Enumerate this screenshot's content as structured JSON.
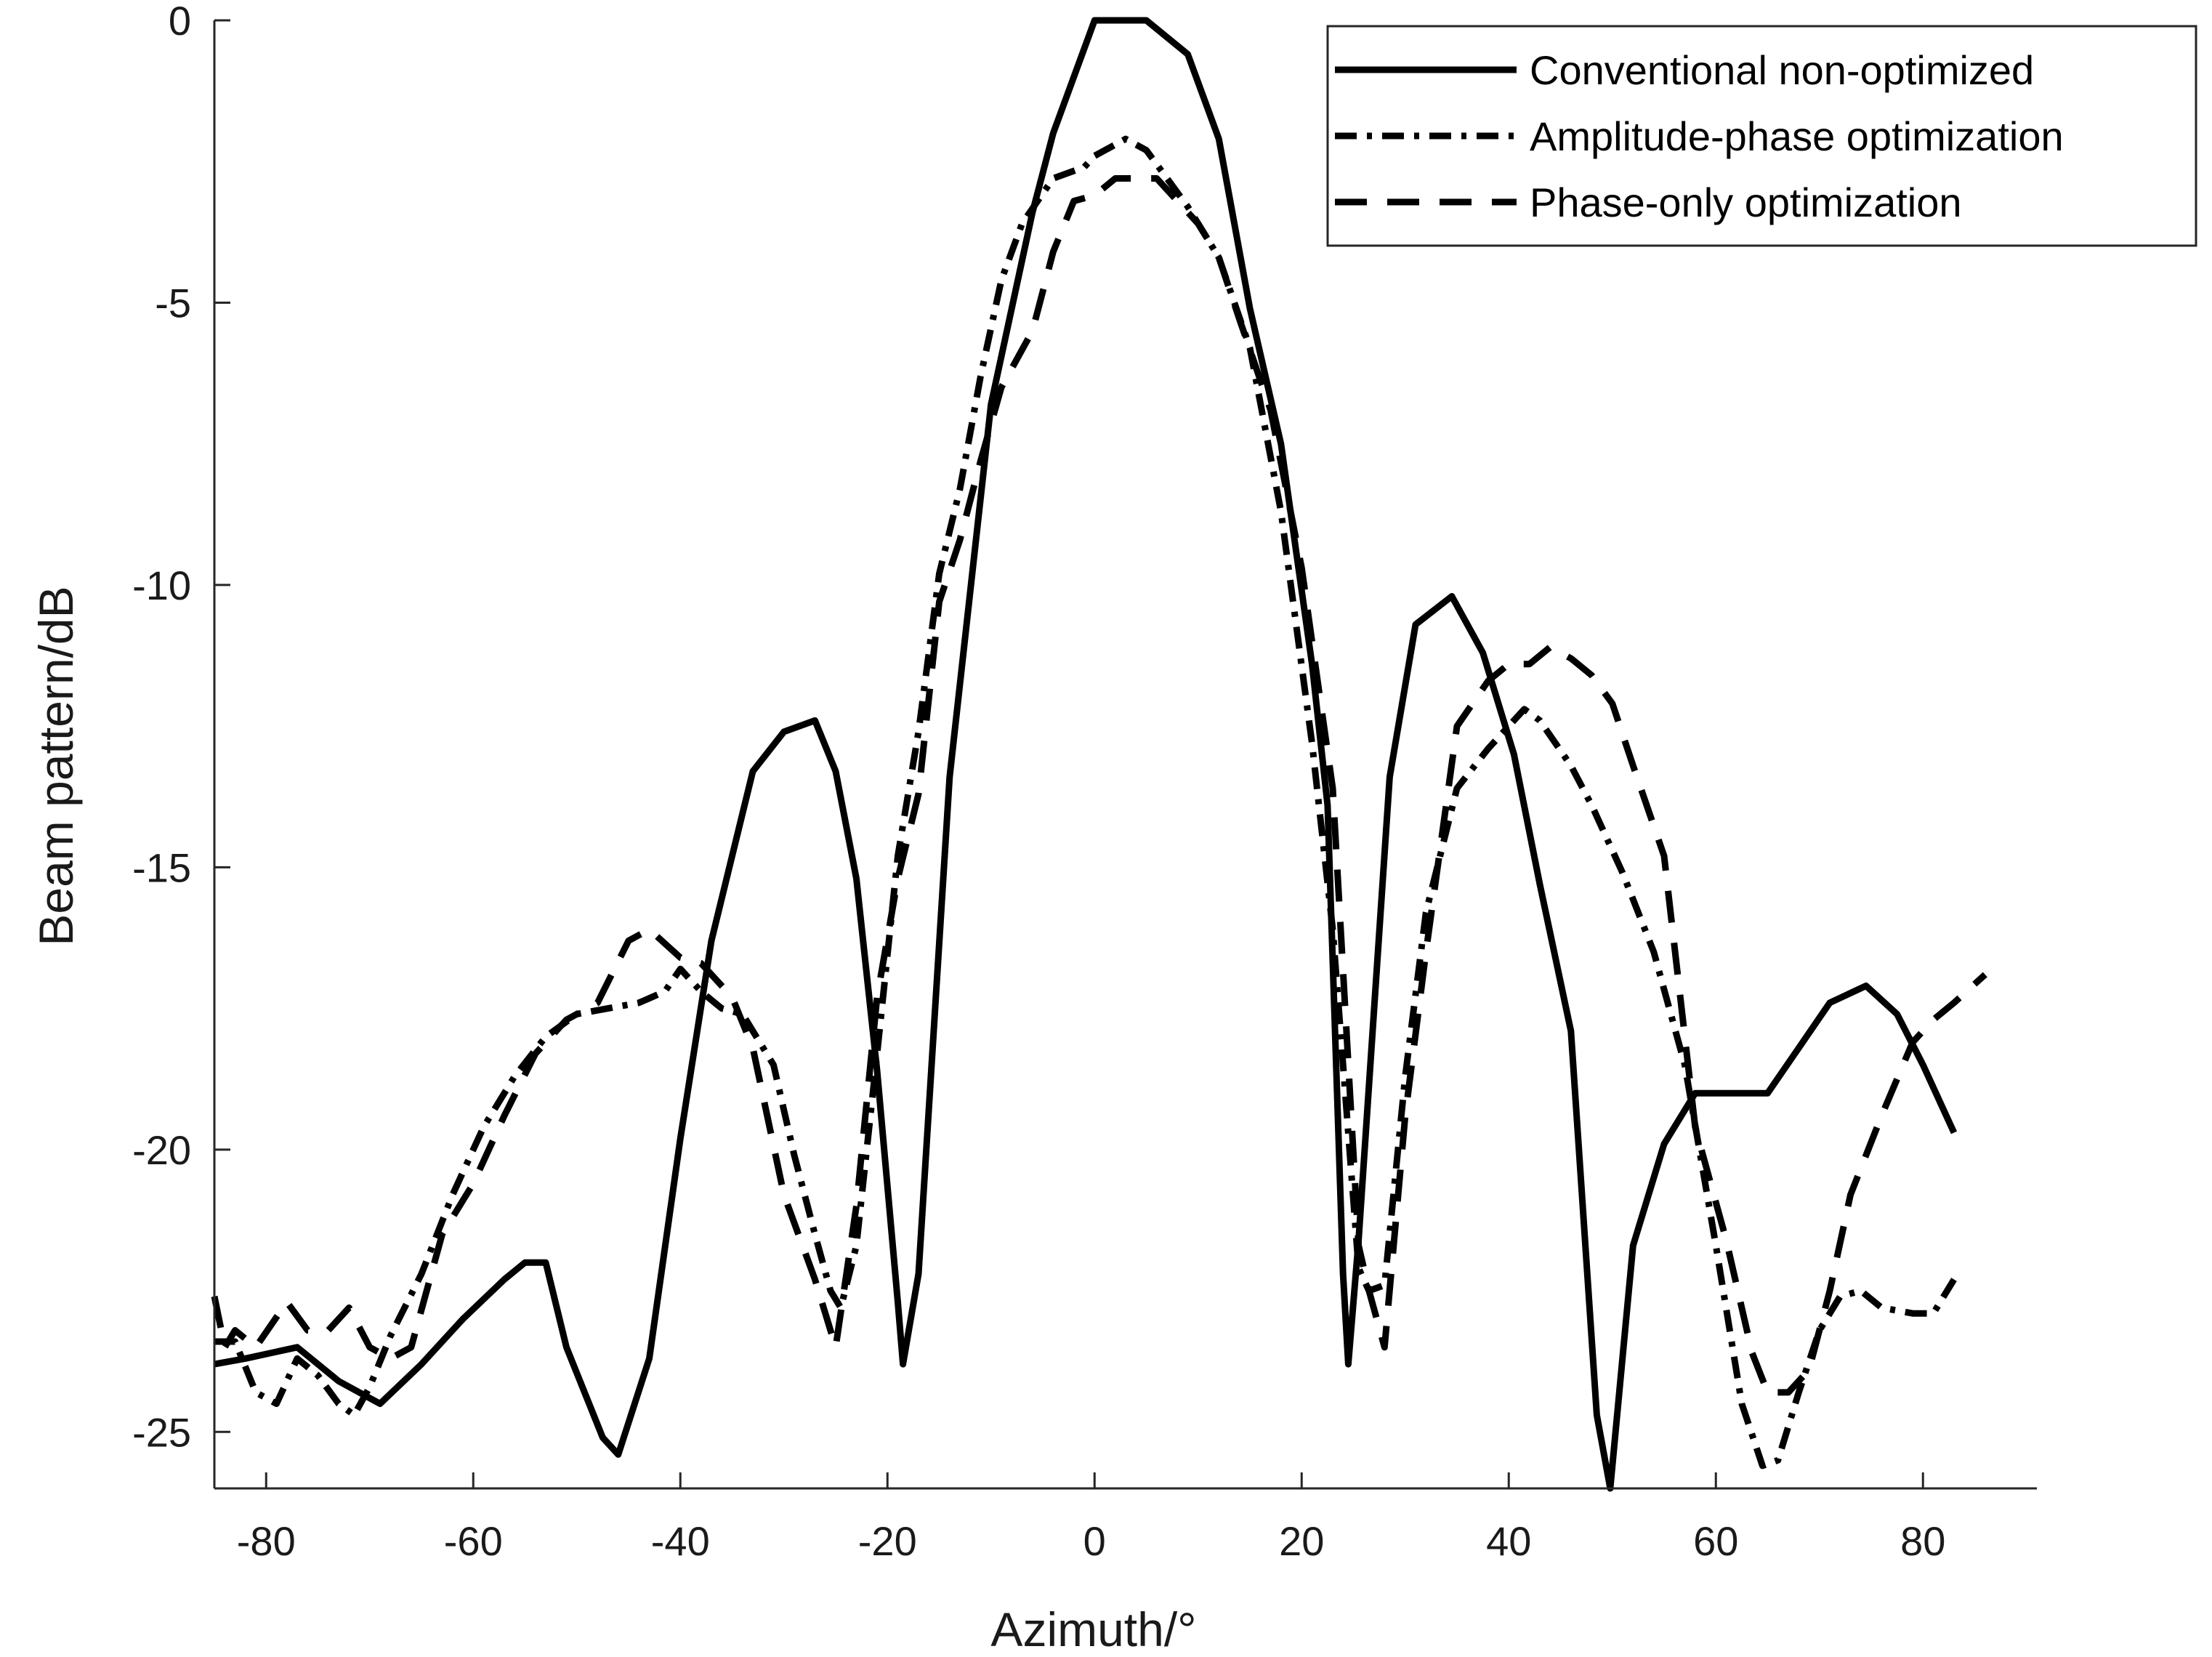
{
  "chart_data": {
    "type": "line",
    "title": "",
    "xlabel": "Azimuth/°",
    "ylabel": "Beam pattern/dB",
    "xlim": [
      -85,
      91
    ],
    "ylim": [
      -26,
      0
    ],
    "xticks": [
      -80,
      -60,
      -40,
      -20,
      0,
      20,
      40,
      60,
      80
    ],
    "yticks": [
      0,
      -5,
      -10,
      -15,
      -20,
      -25
    ],
    "grid": false,
    "legend_position": "top-right",
    "series": [
      {
        "name": "Conventional non-optimized",
        "style": "solid",
        "color": "#000000",
        "x": [
          -85,
          -82,
          -77,
          -73,
          -69,
          -65,
          -61,
          -57,
          -55,
          -53,
          -51,
          -47.5,
          -46,
          -43,
          -40,
          -37,
          -35,
          -33,
          -30,
          -27,
          -25,
          -23,
          -21,
          -19,
          -18.5,
          -17,
          -14,
          -10,
          -6,
          -4,
          0,
          5,
          9,
          12,
          15,
          18,
          21,
          22.5,
          24,
          24.5,
          25.5,
          27,
          28.5,
          31,
          34.5,
          37.5,
          40.5,
          43,
          46,
          48.5,
          49.8,
          52,
          55,
          58,
          65,
          68,
          71,
          74.5,
          77.5,
          80,
          83
        ],
        "y": [
          -23.8,
          -23.7,
          -23.5,
          -24.1,
          -24.5,
          -23.8,
          -23,
          -22.3,
          -22,
          -22,
          -23.5,
          -25.1,
          -25.4,
          -23.7,
          -19.8,
          -16.3,
          -14.8,
          -13.3,
          -12.6,
          -12.4,
          -13.3,
          -15.2,
          -18.6,
          -22.7,
          -23.8,
          -22.2,
          -13.4,
          -6.8,
          -3.4,
          -2,
          0,
          0,
          -0.6,
          -2.1,
          -5.1,
          -7.5,
          -11.4,
          -13.9,
          -22.2,
          -23.8,
          -21.6,
          -17.5,
          -13.4,
          -10.7,
          -10.2,
          -11.2,
          -13,
          -15.3,
          -17.9,
          -24.7,
          -26,
          -21.7,
          -19.9,
          -19,
          -19,
          -18.2,
          -17.4,
          -17.1,
          -17.6,
          -18.5,
          -19.7
        ]
      },
      {
        "name": "Amplitude-phase optimization",
        "style": "dash-dot",
        "color": "#000000",
        "x": [
          -85,
          -83,
          -81,
          -79,
          -77,
          -75,
          -73,
          -71.5,
          -70,
          -68,
          -65,
          -62,
          -59,
          -56,
          -53,
          -50,
          -47,
          -44,
          -41.5,
          -40,
          -38,
          -36,
          -34,
          -31,
          -29,
          -27,
          -25.5,
          -24.5,
          -23,
          -21,
          -19,
          -17,
          -15,
          -13,
          -11,
          -9,
          -7,
          -4,
          -1,
          0,
          3,
          5,
          7,
          9,
          12,
          15,
          18,
          21,
          23,
          25.5,
          26.5,
          28,
          30,
          32,
          35,
          38,
          41.5,
          43,
          46,
          48,
          51,
          54,
          57,
          60,
          62.5,
          64.5,
          66,
          68,
          70,
          72,
          74,
          76,
          79,
          81,
          83
        ],
        "y": [
          -23.4,
          -23.4,
          -24.3,
          -24.5,
          -23.7,
          -24,
          -24.5,
          -24.7,
          -24.2,
          -23.3,
          -22.2,
          -20.8,
          -19.6,
          -18.7,
          -18,
          -17.6,
          -17.5,
          -17.4,
          -17.2,
          -16.8,
          -17.2,
          -17.5,
          -17.6,
          -18.5,
          -20.1,
          -21.5,
          -22.5,
          -22.8,
          -21.7,
          -18.3,
          -14.8,
          -12.6,
          -9.8,
          -8.3,
          -6.3,
          -4.6,
          -3.6,
          -2.8,
          -2.6,
          -2.4,
          -2.1,
          -2.3,
          -2.8,
          -3.3,
          -4.2,
          -5.8,
          -8.7,
          -12.8,
          -16.1,
          -22.1,
          -22.5,
          -22.4,
          -18.7,
          -15.8,
          -13.6,
          -12.9,
          -12.2,
          -12.4,
          -13.2,
          -13.9,
          -15.1,
          -16.5,
          -18.5,
          -21.7,
          -24.5,
          -25.6,
          -25.5,
          -24.3,
          -23.2,
          -22.6,
          -22.5,
          -22.8,
          -22.9,
          -22.9,
          -22.3
        ]
      },
      {
        "name": "Phase-only optimization",
        "style": "dashed",
        "color": "#000000",
        "x": [
          -85,
          -84,
          -83,
          -81,
          -78,
          -76,
          -74,
          -72,
          -70,
          -68,
          -66,
          -63,
          -60,
          -57,
          -54,
          -51,
          -48,
          -45,
          -43,
          -40,
          -38,
          -35,
          -33,
          -30,
          -27,
          -25,
          -23,
          -21,
          -19,
          -17,
          -15,
          -13,
          -11,
          -9,
          -6,
          -4,
          -2,
          0,
          2,
          4,
          6,
          8,
          10,
          12,
          14,
          17,
          20,
          23,
          25.5,
          26.5,
          28,
          30,
          32,
          35,
          38,
          40,
          42,
          44,
          46,
          48,
          50,
          52,
          55,
          58,
          61,
          63.5,
          65,
          67,
          69,
          71,
          73,
          76,
          79,
          81,
          83,
          86
        ],
        "y": [
          -22.6,
          -23.5,
          -23.2,
          -23.5,
          -22.7,
          -23.2,
          -23.2,
          -22.8,
          -23.5,
          -23.7,
          -23.5,
          -21.5,
          -20.6,
          -19.4,
          -18.3,
          -17.7,
          -17.4,
          -16.3,
          -16.1,
          -16.6,
          -16.7,
          -17.3,
          -18.2,
          -20.8,
          -22.3,
          -23.5,
          -21,
          -17.3,
          -15.2,
          -13.7,
          -10.3,
          -9.2,
          -7.8,
          -6.5,
          -5.5,
          -4.1,
          -3.2,
          -3.1,
          -2.8,
          -2.8,
          -2.8,
          -3.2,
          -3.6,
          -4.2,
          -5.3,
          -6.9,
          -9.7,
          -13.6,
          -21.7,
          -22.5,
          -23.5,
          -19.4,
          -16.5,
          -12.5,
          -11.7,
          -11.4,
          -11.4,
          -11.1,
          -11.3,
          -11.6,
          -12.1,
          -13.2,
          -14.8,
          -19.6,
          -21.6,
          -23.6,
          -24.3,
          -24.3,
          -23.9,
          -22.5,
          -20.8,
          -19.4,
          -18.1,
          -17.7,
          -17.4,
          -16.9
        ]
      }
    ]
  }
}
